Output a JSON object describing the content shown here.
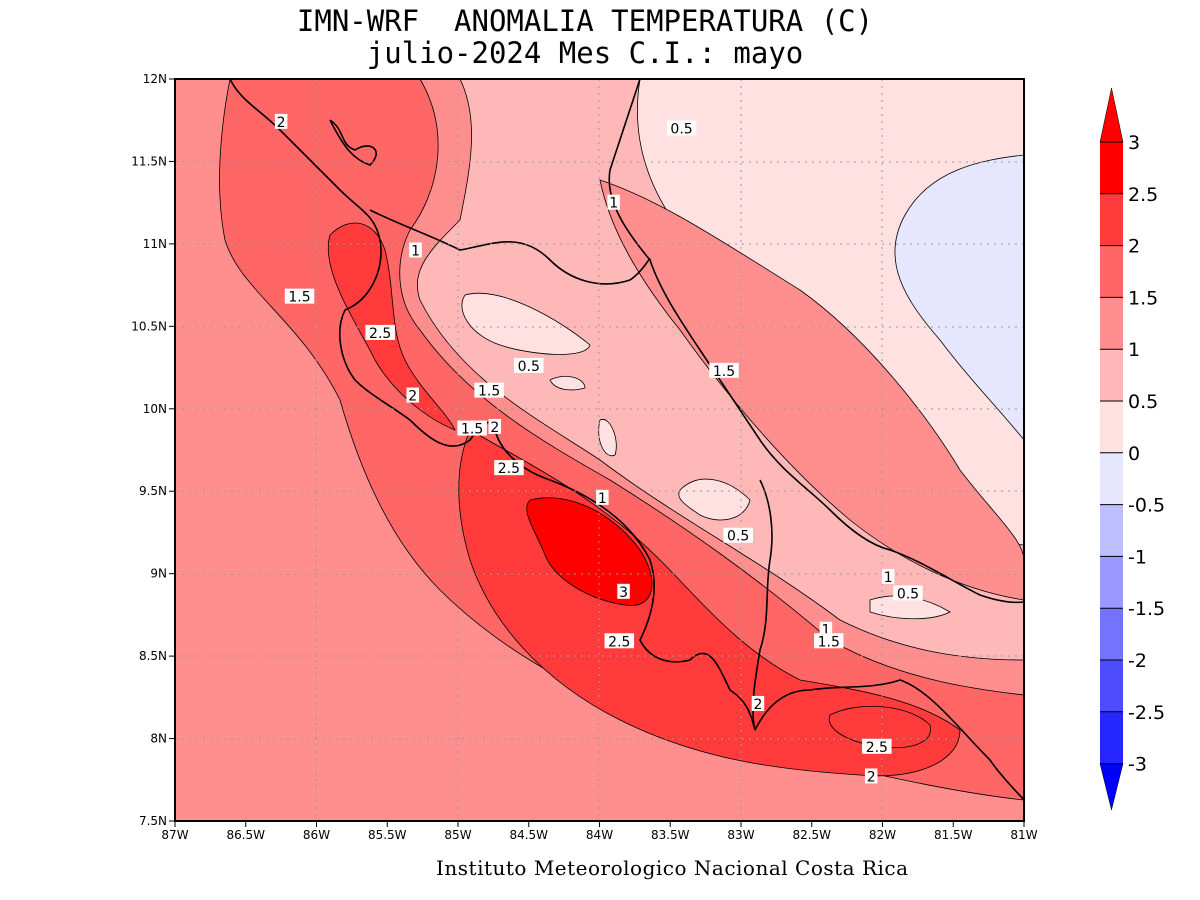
{
  "title": {
    "line1": "IMN-WRF  ANOMALIA TEMPERATURA (C)",
    "line2": "julio-2024 Mes C.I.: mayo"
  },
  "credit": "Instituto Meteorologico Nacional Costa Rica",
  "axes": {
    "lat_labels": [
      "12N",
      "11.5N",
      "11N",
      "10.5N",
      "10N",
      "9.5N",
      "9N",
      "8.5N",
      "8N",
      "7.5N"
    ],
    "lon_labels": [
      "87W",
      "86.5W",
      "86W",
      "85.5W",
      "85W",
      "84.5W",
      "84W",
      "83.5W",
      "83W",
      "82.5W",
      "82W",
      "81.5W",
      "81W"
    ],
    "lon_range": [
      -87,
      -81
    ],
    "lat_range": [
      7.5,
      12
    ],
    "grid": "dotted"
  },
  "colorbar": {
    "labels": [
      "3",
      "2.5",
      "2",
      "1.5",
      "1",
      "0.5",
      "0",
      "-0.5",
      "-1",
      "-1.5",
      "-2",
      "-2.5",
      "-3"
    ],
    "colors": [
      "#ff0000",
      "#ff3b3b",
      "#ff6666",
      "#ff8f8f",
      "#ffb8b8",
      "#ffe1e1",
      "#e6e6ff",
      "#bfbfff",
      "#9999ff",
      "#7373ff",
      "#4d4dff",
      "#2626ff",
      "#0000ff"
    ],
    "top_arrow_color": "#ff0000",
    "bottom_arrow_color": "#0000ff"
  },
  "contour_labels": [
    {
      "text": "2",
      "lon": -86.25,
      "lat": 11.74
    },
    {
      "text": "0.5",
      "lon": -83.42,
      "lat": 11.7
    },
    {
      "text": "1",
      "lon": -83.9,
      "lat": 11.25
    },
    {
      "text": "1",
      "lon": -85.3,
      "lat": 10.96
    },
    {
      "text": "1.5",
      "lon": -86.12,
      "lat": 10.68
    },
    {
      "text": "2.5",
      "lon": -85.55,
      "lat": 10.46
    },
    {
      "text": "0.5",
      "lon": -84.5,
      "lat": 10.26
    },
    {
      "text": "1.5",
      "lon": -83.12,
      "lat": 10.23
    },
    {
      "text": "1.5",
      "lon": -84.78,
      "lat": 10.11
    },
    {
      "text": "2",
      "lon": -85.32,
      "lat": 10.08
    },
    {
      "text": "1.5",
      "lon": -84.9,
      "lat": 9.88
    },
    {
      "text": "2",
      "lon": -84.74,
      "lat": 9.89
    },
    {
      "text": "2.5",
      "lon": -84.64,
      "lat": 9.64
    },
    {
      "text": "1",
      "lon": -83.98,
      "lat": 9.46
    },
    {
      "text": "0.5",
      "lon": -83.02,
      "lat": 9.23
    },
    {
      "text": "1",
      "lon": -81.96,
      "lat": 8.98
    },
    {
      "text": "3",
      "lon": -83.83,
      "lat": 8.89
    },
    {
      "text": "0.5",
      "lon": -81.82,
      "lat": 8.88
    },
    {
      "text": "1",
      "lon": -82.4,
      "lat": 8.66
    },
    {
      "text": "1.5",
      "lon": -82.38,
      "lat": 8.59
    },
    {
      "text": "2.5",
      "lon": -83.86,
      "lat": 8.59
    },
    {
      "text": "2",
      "lon": -82.88,
      "lat": 8.21
    },
    {
      "text": "2.5",
      "lon": -82.04,
      "lat": 7.95
    },
    {
      "text": "2",
      "lon": -82.08,
      "lat": 7.77
    }
  ]
}
